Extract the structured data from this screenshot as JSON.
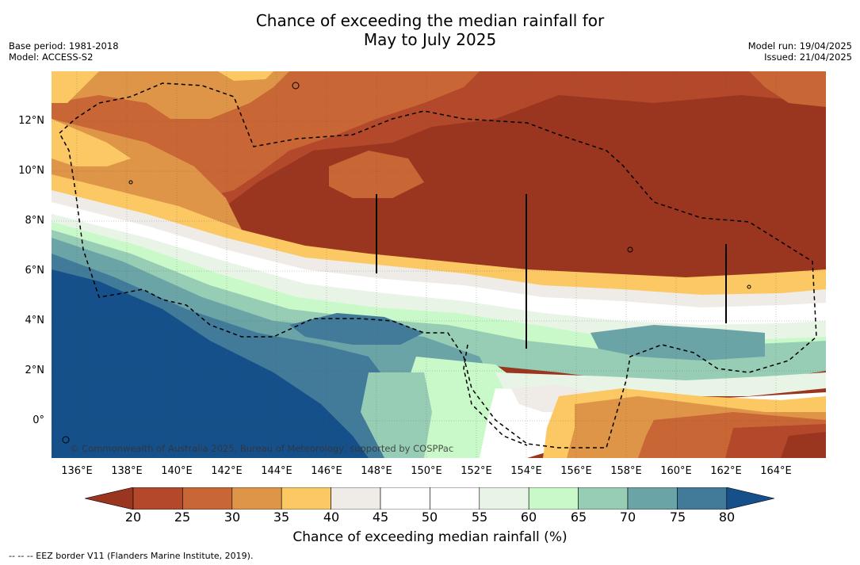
{
  "title_line1": "Chance of exceeding the median rainfall for",
  "title_line2": "May to July 2025",
  "base_period": "Base period: 1981-2018",
  "model": "Model: ACCESS-S2",
  "model_run": "Model run: 19/04/2025",
  "issued": "Issued: 21/04/2025",
  "copyright": "© Commonwealth of Australia 2025, Bureau of Meteorology, supported by COSPPac",
  "footnote": "--  --  -- EEZ border V11 (Flanders Marine Institute, 2019).",
  "lat_labels": [
    "12°N",
    "10°N",
    "8°N",
    "6°N",
    "4°N",
    "2°N",
    "0°"
  ],
  "lon_labels": [
    "136°E",
    "138°E",
    "140°E",
    "142°E",
    "144°E",
    "146°E",
    "148°E",
    "150°E",
    "152°E",
    "154°E",
    "156°E",
    "158°E",
    "160°E",
    "162°E",
    "164°E"
  ],
  "colorbar": {
    "label": "Chance of exceeding median rainfall (%)",
    "ticks": [
      "20",
      "25",
      "30",
      "35",
      "40",
      "45",
      "50",
      "55",
      "60",
      "65",
      "70",
      "75",
      "80"
    ],
    "colors": [
      "#9a3520",
      "#b3482a",
      "#c96635",
      "#de9548",
      "#fcc864",
      "#efebe6",
      "#ffffff",
      "#ffffff",
      "#e8f4e6",
      "#c9f9c9",
      "#98cdb5",
      "#6ba4a6",
      "#427a99",
      "#16508b"
    ]
  },
  "map_colors": {
    "c20": "#9a3520",
    "c25": "#b3482a",
    "c30": "#c96635",
    "c35": "#de9548",
    "c40": "#fcc864",
    "c45": "#efebe6",
    "c50": "#ffffff",
    "c60": "#e8f4e6",
    "c65": "#c9f9c9",
    "c70": "#98cdb5",
    "c75": "#6ba4a6",
    "c80": "#427a99",
    "c85": "#16508b"
  }
}
